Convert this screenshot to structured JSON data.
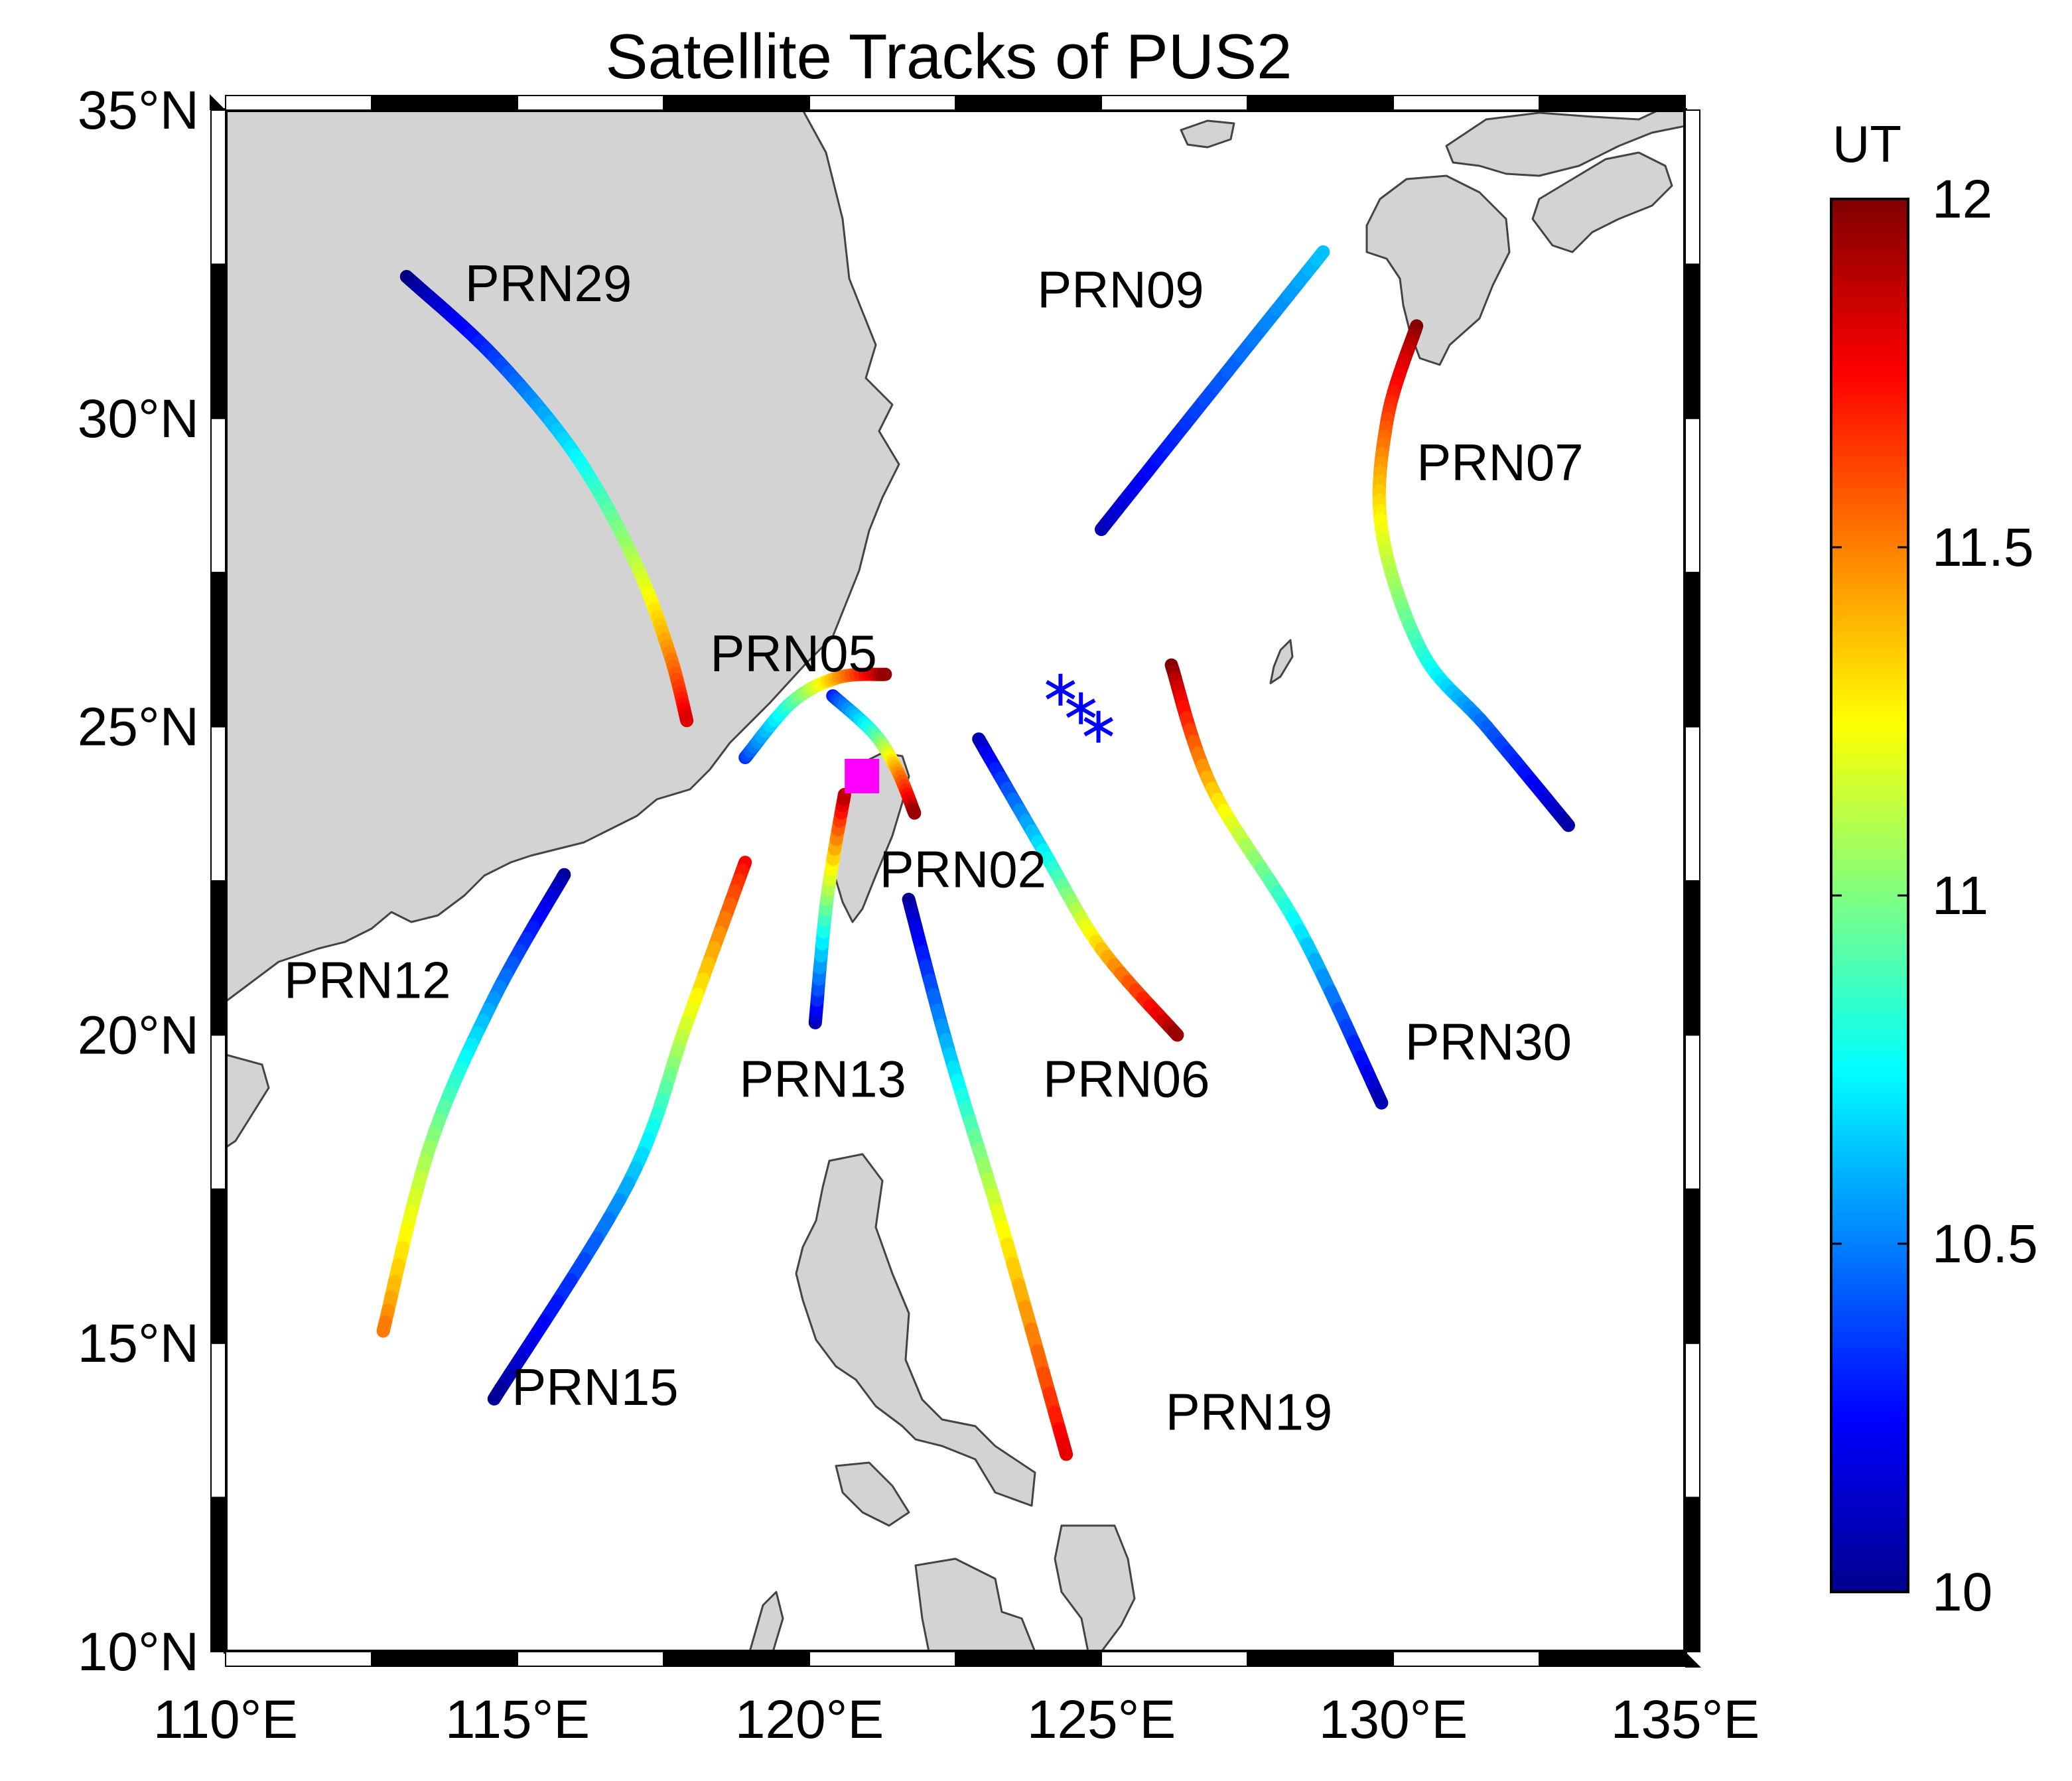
{
  "title": "Satellite Tracks of PUS2",
  "x_axis": {
    "range": [
      110,
      135
    ],
    "ticks": [
      {
        "value": 110,
        "label": "110°E"
      },
      {
        "value": 115,
        "label": "115°E"
      },
      {
        "value": 120,
        "label": "120°E"
      },
      {
        "value": 125,
        "label": "125°E"
      },
      {
        "value": 130,
        "label": "130°E"
      },
      {
        "value": 135,
        "label": "135°E"
      }
    ]
  },
  "y_axis": {
    "range": [
      10,
      35
    ],
    "ticks": [
      {
        "value": 10,
        "label": "10°N"
      },
      {
        "value": 15,
        "label": "15°N"
      },
      {
        "value": 20,
        "label": "20°N"
      },
      {
        "value": 25,
        "label": "25°N"
      },
      {
        "value": 30,
        "label": "30°N"
      },
      {
        "value": 35,
        "label": "35°N"
      }
    ]
  },
  "colorbar": {
    "title": "UT",
    "range": [
      10,
      12
    ],
    "ticks": [
      {
        "value": 10,
        "label": "10"
      },
      {
        "value": 10.5,
        "label": "10.5"
      },
      {
        "value": 11,
        "label": "11"
      },
      {
        "value": 11.5,
        "label": "11.5"
      },
      {
        "value": 12,
        "label": "12"
      }
    ],
    "colormap": "jet"
  },
  "colors": {
    "land": "#d3d3d3",
    "coast": "#444444",
    "station": "#ff00ff",
    "star_marker": "#0000ff"
  },
  "station": {
    "lon": 120.9,
    "lat": 24.2,
    "marker": "square"
  },
  "markers": [
    {
      "lon": 124.3,
      "lat": 25.6,
      "symbol": "asterisk"
    },
    {
      "lon": 124.65,
      "lat": 25.3,
      "symbol": "asterisk"
    },
    {
      "lon": 124.95,
      "lat": 25.0,
      "symbol": "asterisk"
    }
  ],
  "tracks": [
    {
      "prn": "PRN29",
      "label": "PRN29",
      "label_lon": 114.1,
      "label_lat": 31.9,
      "points": [
        [
          113.1,
          32.3
        ],
        [
          114.6,
          31.0
        ],
        [
          116.0,
          29.4
        ],
        [
          117.0,
          27.7
        ],
        [
          117.6,
          26.2
        ],
        [
          117.9,
          25.1
        ]
      ],
      "ut_start": 10.0,
      "ut_end": 11.85
    },
    {
      "prn": "PRN09",
      "label": "PRN09",
      "label_lon": 123.9,
      "label_lat": 31.8,
      "points": [
        [
          125.0,
          28.2
        ],
        [
          126.6,
          30.1
        ],
        [
          128.8,
          32.7
        ]
      ],
      "ut_start": 10.1,
      "ut_end": 10.65
    },
    {
      "prn": "PRN07",
      "label": "PRN07",
      "label_lon": 130.4,
      "label_lat": 29.0,
      "points": [
        [
          130.4,
          31.5
        ],
        [
          129.9,
          30.0
        ],
        [
          129.8,
          28.2
        ],
        [
          130.5,
          26.2
        ],
        [
          131.6,
          25.0
        ],
        [
          133.0,
          23.4
        ]
      ],
      "ut_start": 12.0,
      "ut_end": 10.05
    },
    {
      "prn": "PRN05",
      "label": "PRN05",
      "label_lon": 118.3,
      "label_lat": 25.9,
      "points": [
        [
          118.9,
          24.5
        ],
        [
          119.7,
          25.4
        ],
        [
          120.5,
          25.8
        ],
        [
          121.3,
          25.85
        ]
      ],
      "ut_start": 10.35,
      "ut_end": 12.0
    },
    {
      "prn": "PRN02",
      "label": "PRN02",
      "label_lon": 121.2,
      "label_lat": 22.4,
      "points": [
        [
          120.4,
          25.5
        ],
        [
          121.1,
          24.9
        ],
        [
          121.5,
          24.3
        ],
        [
          121.8,
          23.6
        ]
      ],
      "ut_start": 10.3,
      "ut_end": 12.0
    },
    {
      "prn": "PRN13",
      "label": "PRN13",
      "label_lon": 118.8,
      "label_lat": 19.0,
      "points": [
        [
          120.1,
          20.2
        ],
        [
          120.3,
          22.2
        ],
        [
          120.6,
          23.9
        ]
      ],
      "ut_start": 10.1,
      "ut_end": 11.95
    },
    {
      "prn": "PRN06",
      "label": "PRN06",
      "label_lon": 124.0,
      "label_lat": 19.0,
      "points": [
        [
          122.9,
          24.8
        ],
        [
          124.0,
          23.0
        ],
        [
          125.0,
          21.4
        ],
        [
          126.3,
          20.0
        ]
      ],
      "ut_start": 10.1,
      "ut_end": 12.0
    },
    {
      "prn": "PRN30",
      "label": "PRN30",
      "label_lon": 130.2,
      "label_lat": 19.6,
      "points": [
        [
          126.2,
          26.0
        ],
        [
          126.9,
          24.0
        ],
        [
          128.4,
          21.7
        ],
        [
          129.8,
          18.9
        ]
      ],
      "ut_start": 12.0,
      "ut_end": 10.05
    },
    {
      "prn": "PRN12",
      "label": "PRN12",
      "label_lon": 111.0,
      "label_lat": 20.6,
      "points": [
        [
          115.8,
          22.6
        ],
        [
          114.6,
          20.6
        ],
        [
          113.5,
          18.2
        ],
        [
          112.7,
          15.2
        ]
      ],
      "ut_start": 10.05,
      "ut_end": 11.55
    },
    {
      "prn": "PRN15",
      "label": "PRN15",
      "label_lon": 114.9,
      "label_lat": 14.0,
      "points": [
        [
          118.9,
          22.8
        ],
        [
          117.9,
          20.2
        ],
        [
          116.9,
          17.6
        ],
        [
          114.6,
          14.1
        ]
      ],
      "ut_start": 11.75,
      "ut_end": 10.0
    },
    {
      "prn": "PRN19",
      "label": "PRN19",
      "label_lon": 126.1,
      "label_lat": 13.6,
      "points": [
        [
          121.7,
          22.2
        ],
        [
          122.4,
          19.7
        ],
        [
          123.3,
          16.9
        ],
        [
          124.4,
          13.2
        ]
      ],
      "ut_start": 10.05,
      "ut_end": 11.85
    }
  ]
}
